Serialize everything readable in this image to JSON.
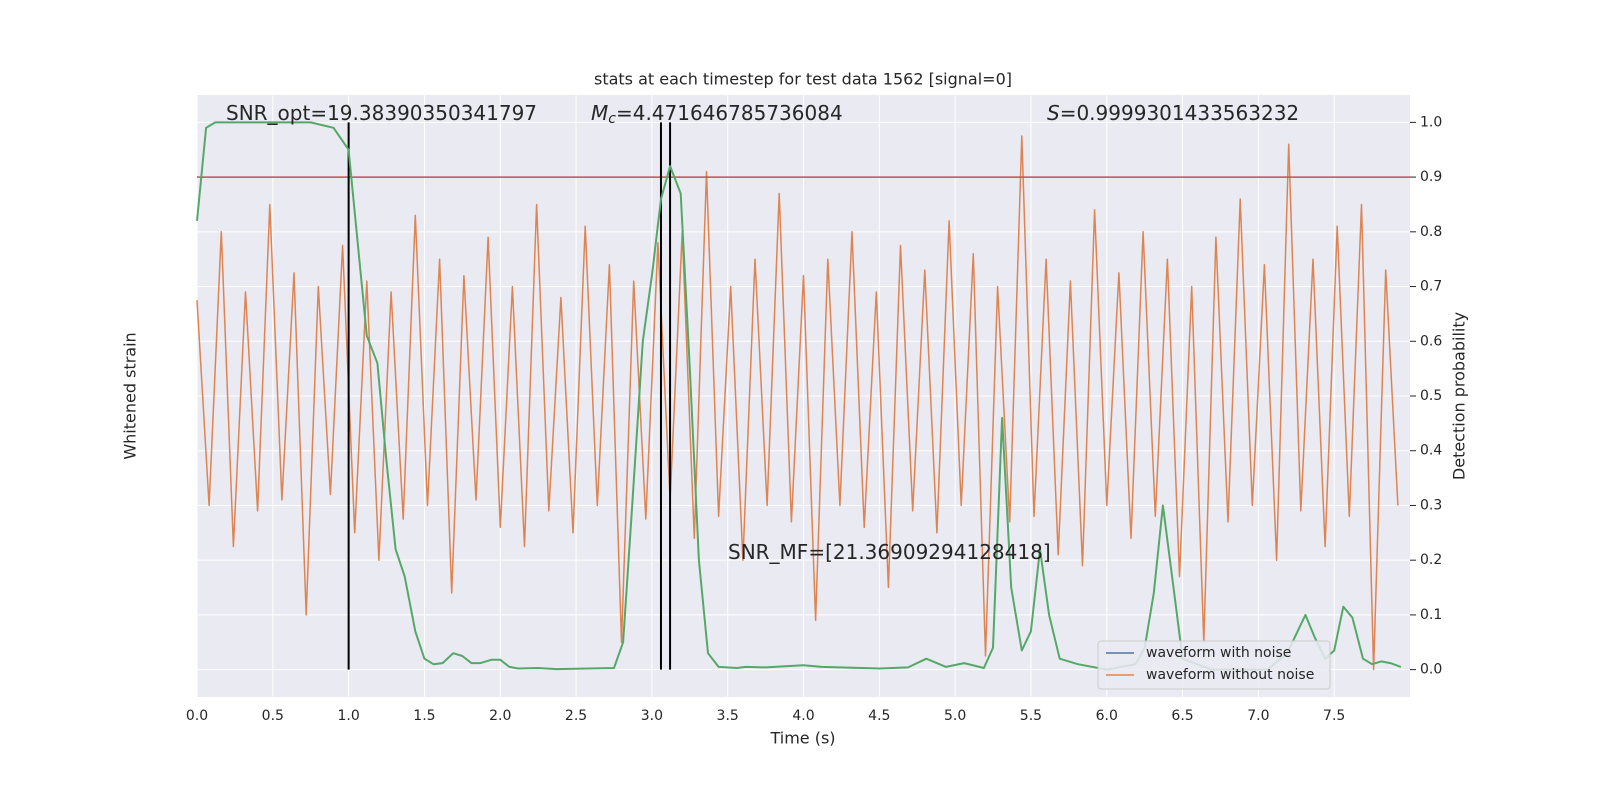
{
  "chart_data": {
    "type": "line",
    "title": "stats at each timestep for test data 1562 [signal=0]",
    "xlabel": "Time (s)",
    "ylabel": "Whitened strain",
    "y2label": "Detection probability",
    "xlim": [
      0,
      8
    ],
    "xticks": [
      {
        "value": 0,
        "label": "0.0"
      },
      {
        "value": 0.5,
        "label": "0.5"
      },
      {
        "value": 1,
        "label": "1.0"
      },
      {
        "value": 1.5,
        "label": "1.5"
      },
      {
        "value": 2,
        "label": "2.0"
      },
      {
        "value": 2.5,
        "label": "2.5"
      },
      {
        "value": 3,
        "label": "3.0"
      },
      {
        "value": 3.5,
        "label": "3.5"
      },
      {
        "value": 4,
        "label": "4.0"
      },
      {
        "value": 4.5,
        "label": "4.5"
      },
      {
        "value": 5,
        "label": "5.0"
      },
      {
        "value": 5.5,
        "label": "5.5"
      },
      {
        "value": 6,
        "label": "6.0"
      },
      {
        "value": 6.5,
        "label": "6.5"
      },
      {
        "value": 7,
        "label": "7.0"
      },
      {
        "value": 7.5,
        "label": "7.5"
      }
    ],
    "ylim": [
      -1.1,
      1.1
    ],
    "y2lim": [
      -0.05,
      1.05
    ],
    "y2ticks": [
      {
        "value": 0,
        "label": "0.0"
      },
      0.1,
      0.2,
      0.3,
      0.4,
      0.5,
      0.6,
      0.7,
      0.8,
      0.9,
      {
        "value": 1,
        "label": "1.0"
      }
    ],
    "grid": true,
    "legend": "lower right",
    "threshold": {
      "value": 0.9,
      "color": "#c44e52",
      "axis": "y2"
    },
    "vlines": {
      "x": [
        1.0,
        3.06,
        3.12
      ],
      "ymin": 0,
      "ymax": 1,
      "color": "#000000"
    },
    "annotations": [
      {
        "text": "SNR_opt=19.38390350341797"
      },
      {
        "italic": "M",
        "sub": "c",
        "text": "=4.471646785736084"
      },
      {
        "italic": "S",
        "text": "=0.9999301433563232"
      },
      {
        "text": "SNR_MF=[21.36909294128418]"
      }
    ],
    "series": [
      {
        "name": "waveform with noise",
        "color": "#4c72b0"
      },
      {
        "name": "waveform without noise",
        "color": "#dd8452",
        "x": [
          0,
          0.08,
          0.16,
          0.24,
          0.32,
          0.4,
          0.48,
          0.56,
          0.64,
          0.72,
          0.8,
          0.88,
          0.96,
          1.04,
          1.12,
          1.2,
          1.28,
          1.36,
          1.44,
          1.52,
          1.6,
          1.68,
          1.76,
          1.84,
          1.92,
          2.0,
          2.08,
          2.16,
          2.24,
          2.32,
          2.4,
          2.48,
          2.56,
          2.64,
          2.72,
          2.8,
          2.88,
          2.96,
          3.04,
          3.12,
          3.2,
          3.28,
          3.36,
          3.44,
          3.52,
          3.6,
          3.68,
          3.76,
          3.84,
          3.92,
          4.0,
          4.08,
          4.16,
          4.24,
          4.32,
          4.4,
          4.48,
          4.56,
          4.64,
          4.72,
          4.8,
          4.88,
          4.96,
          5.04,
          5.12,
          5.2,
          5.28,
          5.36,
          5.44,
          5.52,
          5.6,
          5.68,
          5.76,
          5.84,
          5.92,
          6.0,
          6.08,
          6.16,
          6.24,
          6.32,
          6.4,
          6.48,
          6.56,
          6.64,
          6.72,
          6.8,
          6.88,
          6.96,
          7.04,
          7.12,
          7.2,
          7.28,
          7.36,
          7.44,
          7.52,
          7.6,
          7.68,
          7.76,
          7.84,
          7.92
        ],
        "values": [
          0.35,
          -0.4,
          0.6,
          -0.55,
          0.38,
          -0.42,
          0.7,
          -0.38,
          0.45,
          -0.8,
          0.4,
          -0.36,
          0.55,
          -0.5,
          0.42,
          -0.6,
          0.38,
          -0.45,
          0.66,
          -0.4,
          0.5,
          -0.72,
          0.44,
          -0.38,
          0.58,
          -0.48,
          0.4,
          -0.55,
          0.7,
          -0.42,
          0.36,
          -0.5,
          0.62,
          -0.4,
          0.48,
          -0.9,
          0.42,
          -0.45,
          0.56,
          -0.38,
          0.6,
          -0.52,
          0.82,
          -0.44,
          0.4,
          -0.6,
          0.5,
          -0.4,
          0.74,
          -0.46,
          0.44,
          -0.82,
          0.5,
          -0.4,
          0.6,
          -0.48,
          0.38,
          -0.7,
          0.55,
          -0.42,
          0.46,
          -0.5,
          0.64,
          -0.4,
          0.52,
          -0.95,
          0.4,
          -0.46,
          0.95,
          -0.44,
          0.5,
          -0.58,
          0.42,
          -0.62,
          0.68,
          -0.4,
          0.45,
          -0.52,
          0.6,
          -0.44,
          0.5,
          -0.66,
          0.4,
          -0.9,
          0.58,
          -0.46,
          0.72,
          -0.4,
          0.48,
          -0.6,
          0.92,
          -0.42,
          0.5,
          -0.55,
          0.62,
          -0.44,
          0.7,
          -1.0,
          0.46,
          -0.4
        ]
      },
      {
        "color": "#55a868",
        "axis": "y2",
        "x": [
          0,
          0.06,
          0.12,
          0.5,
          0.75,
          0.9,
          1.0,
          1.06,
          1.12,
          1.19,
          1.25,
          1.31,
          1.37,
          1.44,
          1.5,
          1.56,
          1.62,
          1.69,
          1.75,
          1.81,
          1.87,
          1.94,
          2.0,
          2.06,
          2.12,
          2.25,
          2.37,
          2.75,
          2.81,
          2.87,
          2.94,
          3.0,
          3.06,
          3.12,
          3.19,
          3.25,
          3.31,
          3.37,
          3.44,
          3.56,
          3.62,
          3.75,
          4.0,
          4.12,
          4.5,
          4.69,
          4.81,
          4.94,
          5.06,
          5.19,
          5.25,
          5.31,
          5.37,
          5.44,
          5.5,
          5.56,
          5.62,
          5.69,
          5.81,
          6.0,
          6.19,
          6.25,
          6.31,
          6.37,
          6.44,
          6.5,
          6.69,
          7.06,
          7.19,
          7.31,
          7.37,
          7.44,
          7.5,
          7.56,
          7.62,
          7.69,
          7.75,
          7.81,
          7.87,
          7.94
        ],
        "values": [
          0.82,
          0.99,
          1.0,
          1.0,
          1.0,
          0.99,
          0.95,
          0.78,
          0.61,
          0.56,
          0.38,
          0.22,
          0.17,
          0.07,
          0.02,
          0.01,
          0.012,
          0.03,
          0.025,
          0.012,
          0.012,
          0.018,
          0.018,
          0.005,
          0.002,
          0.003,
          0.001,
          0.003,
          0.05,
          0.3,
          0.6,
          0.72,
          0.86,
          0.92,
          0.87,
          0.55,
          0.2,
          0.03,
          0.005,
          0.003,
          0.005,
          0.004,
          0.008,
          0.005,
          0.002,
          0.004,
          0.02,
          0.005,
          0.012,
          0.003,
          0.04,
          0.46,
          0.15,
          0.035,
          0.07,
          0.22,
          0.1,
          0.02,
          0.01,
          0.0,
          0.01,
          0.04,
          0.14,
          0.3,
          0.15,
          0.02,
          0.0,
          0.0,
          0.03,
          0.1,
          0.06,
          0.02,
          0.035,
          0.115,
          0.095,
          0.02,
          0.01,
          0.015,
          0.012,
          0.005
        ]
      }
    ]
  }
}
